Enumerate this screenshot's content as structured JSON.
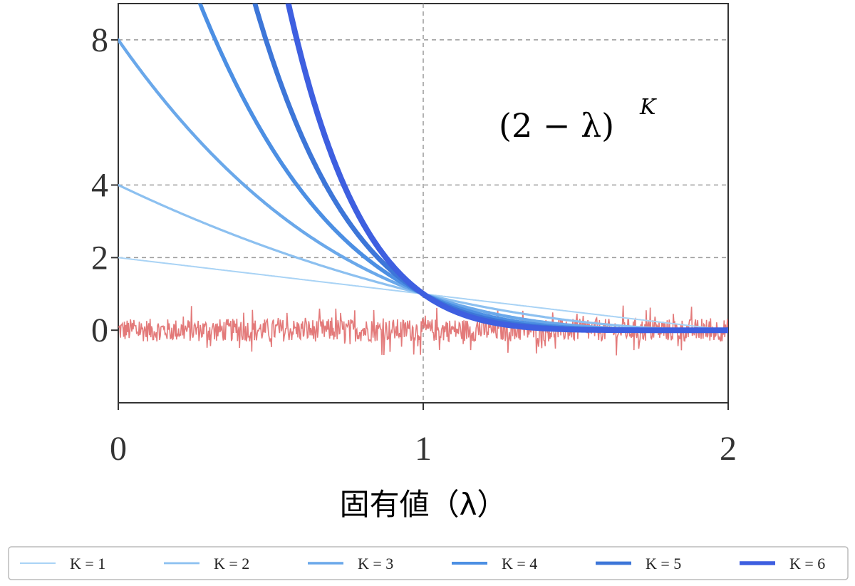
{
  "chart_data": {
    "type": "line",
    "xlabel": "固有値（λ）",
    "annotation": {
      "base": "(2 − λ)",
      "exponent": "K"
    },
    "xlim": [
      0,
      2
    ],
    "ylim": [
      -2,
      9
    ],
    "x_ticks": [
      "0",
      "1",
      "2"
    ],
    "y_ticks": [
      {
        "value": 0,
        "label": "0"
      },
      {
        "value": 2,
        "label": "2"
      },
      {
        "value": 4,
        "label": "4"
      },
      {
        "value": 8,
        "label": "8"
      }
    ],
    "grid": true,
    "legend_position": "bottom",
    "series": [
      {
        "name": "K = 1",
        "exponent": 1,
        "color": "#a9d3f5"
      },
      {
        "name": "K = 2",
        "exponent": 2,
        "color": "#8cc0f0"
      },
      {
        "name": "K = 3",
        "exponent": 3,
        "color": "#6aa8ea"
      },
      {
        "name": "K = 4",
        "exponent": 4,
        "color": "#4c8fe3"
      },
      {
        "name": "K = 5",
        "exponent": 5,
        "color": "#3d76d8"
      },
      {
        "name": "K = 6",
        "exponent": 6,
        "color": "#3e5fe0"
      }
    ],
    "noise_series": {
      "color": "#e06b6b",
      "center": 0,
      "amplitude": 0.7
    }
  }
}
